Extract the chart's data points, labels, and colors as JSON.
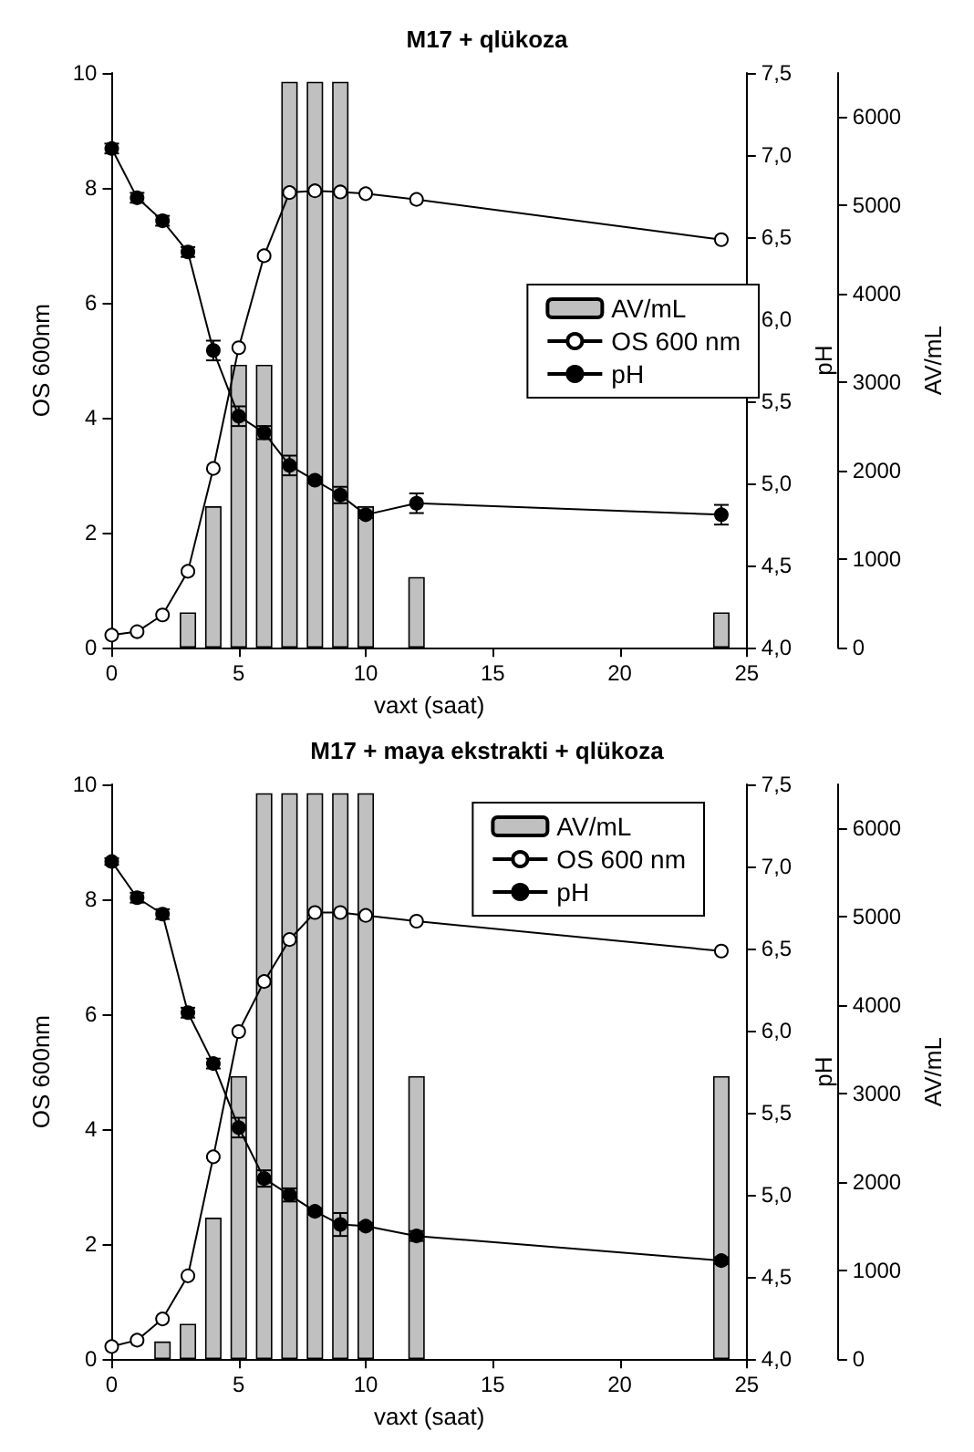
{
  "chart_data": [
    {
      "type": "line",
      "title": "M17 + qlükoza",
      "xlabel": "vaxt (saat)",
      "ylabel": "OS 600nm",
      "y2label": "pH",
      "y3label": "AV/mL",
      "xlim": [
        0,
        25
      ],
      "xticks": [
        0,
        5,
        10,
        15,
        20,
        25
      ],
      "ylim": [
        0,
        10
      ],
      "yticks": [
        0,
        2,
        4,
        6,
        8,
        10
      ],
      "y2lim": [
        4,
        7.5
      ],
      "y2ticks": [
        {
          "value": 4,
          "label": "4,0"
        },
        {
          "value": 4.5,
          "label": "4,5"
        },
        {
          "value": 5,
          "label": "5,0"
        },
        {
          "value": 5.5,
          "label": "5,5"
        },
        {
          "value": 6,
          "label": "6,0"
        },
        {
          "value": 6.5,
          "label": "6,5"
        },
        {
          "value": 7,
          "label": "7,0"
        },
        {
          "value": 7.5,
          "label": "7,5"
        }
      ],
      "y3lim": [
        0,
        6500
      ],
      "y3ticks": [
        0,
        1000,
        2000,
        3000,
        4000,
        5000,
        6000
      ],
      "legend": "right",
      "grid": false,
      "series": [
        {
          "name": "AV/mL",
          "type": "bar",
          "axis": "y3",
          "color": "#c0c0c0",
          "x": [
            3,
            4,
            5,
            6,
            7,
            8,
            9,
            10,
            12,
            24
          ],
          "values": [
            400,
            1600,
            3200,
            3200,
            6400,
            6400,
            6400,
            1600,
            800,
            400
          ]
        },
        {
          "name": "OS 600 nm",
          "color": "#ffffff",
          "marker": "circle",
          "x": [
            0,
            1,
            2,
            3,
            4,
            5,
            6,
            7,
            8,
            9,
            10,
            12,
            24
          ],
          "values": [
            0.22,
            0.28,
            0.57,
            1.33,
            3.12,
            5.22,
            6.82,
            7.92,
            7.95,
            7.93,
            7.9,
            7.8,
            7.1
          ]
        },
        {
          "name": "pH",
          "type": "line",
          "axis": "y2",
          "color": "#000000",
          "marker": "circle",
          "x": [
            0,
            1,
            2,
            3,
            4,
            5,
            6,
            7,
            8,
            9,
            10,
            12,
            24
          ],
          "values": [
            7.04,
            6.74,
            6.6,
            6.41,
            5.81,
            5.41,
            5.31,
            5.11,
            5.02,
            4.93,
            4.81,
            4.88,
            4.81
          ],
          "errors": [
            0.03,
            0.03,
            0.03,
            0.03,
            0.06,
            0.06,
            0.04,
            0.06,
            0.02,
            0.05,
            0.02,
            0.06,
            0.06
          ]
        }
      ]
    },
    {
      "type": "line",
      "title": "M17 + maya ekstrakti + qlükoza",
      "xlabel": "vaxt (saat)",
      "ylabel": "OS 600nm",
      "y2label": "pH",
      "y3label": "AV/mL",
      "xlim": [
        0,
        25
      ],
      "xticks": [
        0,
        5,
        10,
        15,
        20,
        25
      ],
      "ylim": [
        0,
        10
      ],
      "yticks": [
        0,
        2,
        4,
        6,
        8,
        10
      ],
      "y2lim": [
        4,
        7.5
      ],
      "y2ticks": [
        {
          "value": 4,
          "label": "4,0"
        },
        {
          "value": 4.5,
          "label": "4,5"
        },
        {
          "value": 5,
          "label": "5,0"
        },
        {
          "value": 5.5,
          "label": "5,5"
        },
        {
          "value": 6,
          "label": "6,0"
        },
        {
          "value": 6.5,
          "label": "6,5"
        },
        {
          "value": 7,
          "label": "7,0"
        },
        {
          "value": 7.5,
          "label": "7,5"
        }
      ],
      "y3lim": [
        0,
        6500
      ],
      "y3ticks": [
        0,
        1000,
        2000,
        3000,
        4000,
        5000,
        6000
      ],
      "legend": "top right",
      "grid": false,
      "series": [
        {
          "name": "AV/mL",
          "type": "bar",
          "axis": "y3",
          "color": "#c0c0c0",
          "x": [
            2,
            3,
            4,
            5,
            6,
            7,
            8,
            9,
            10,
            12,
            24
          ],
          "values": [
            200,
            400,
            1600,
            3200,
            6400,
            6400,
            6400,
            6400,
            6400,
            3200,
            3200
          ]
        },
        {
          "name": "OS 600 nm",
          "color": "#ffffff",
          "marker": "circle",
          "x": [
            0,
            1,
            2,
            3,
            4,
            5,
            6,
            7,
            8,
            9,
            10,
            12,
            24
          ],
          "values": [
            0.22,
            0.33,
            0.7,
            1.45,
            3.52,
            5.7,
            6.57,
            7.3,
            7.77,
            7.77,
            7.72,
            7.62,
            7.1
          ]
        },
        {
          "name": "pH",
          "type": "line",
          "axis": "y2",
          "color": "#000000",
          "marker": "circle",
          "x": [
            0,
            1,
            2,
            3,
            4,
            5,
            6,
            7,
            8,
            9,
            10,
            12,
            24
          ],
          "values": [
            7.03,
            6.81,
            6.71,
            6.11,
            5.8,
            5.41,
            5.1,
            5.0,
            4.9,
            4.82,
            4.81,
            4.75,
            4.6
          ],
          "errors": [
            0.02,
            0.03,
            0.03,
            0.03,
            0.03,
            0.06,
            0.05,
            0.04,
            0.02,
            0.07,
            0.02,
            0.03,
            0.02
          ]
        }
      ]
    }
  ]
}
